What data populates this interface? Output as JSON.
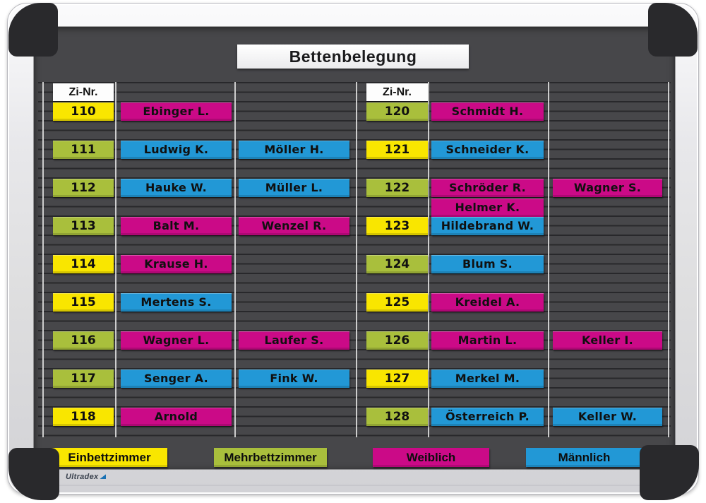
{
  "board_title": "Bettenbelegung",
  "column_header": "Zi-Nr.",
  "brand_logo": "Ultradex",
  "colors": {
    "single": "#f9e600",
    "multi": "#a9bf3c",
    "female": "#cb0a87",
    "male": "#2298d6",
    "board": "#47474a"
  },
  "legend": [
    {
      "label": "Einbettzimmer",
      "type": "single"
    },
    {
      "label": "Mehrbettzimmer",
      "type": "multi"
    },
    {
      "label": "Weiblich",
      "type": "female"
    },
    {
      "label": "Männlich",
      "type": "male"
    }
  ],
  "left_rows": [
    {
      "room": "110",
      "room_type": "single",
      "occupants": [
        {
          "name": "Ebinger L.",
          "gender": "female",
          "column": 1
        }
      ]
    },
    {
      "room": "111",
      "room_type": "multi",
      "occupants": [
        {
          "name": "Ludwig K.",
          "gender": "male",
          "column": 1
        },
        {
          "name": "Möller H.",
          "gender": "male",
          "column": 2
        }
      ]
    },
    {
      "room": "112",
      "room_type": "multi",
      "occupants": [
        {
          "name": "Hauke W.",
          "gender": "male",
          "column": 1
        },
        {
          "name": "Müller L.",
          "gender": "male",
          "column": 2
        }
      ]
    },
    {
      "room": "113",
      "room_type": "multi",
      "occupants": [
        {
          "name": "Balt M.",
          "gender": "female",
          "column": 1
        },
        {
          "name": "Wenzel R.",
          "gender": "female",
          "column": 2
        }
      ]
    },
    {
      "room": "114",
      "room_type": "single",
      "occupants": [
        {
          "name": "Krause H.",
          "gender": "female",
          "column": 1
        }
      ]
    },
    {
      "room": "115",
      "room_type": "single",
      "occupants": [
        {
          "name": "Mertens S.",
          "gender": "male",
          "column": 1
        }
      ]
    },
    {
      "room": "116",
      "room_type": "multi",
      "occupants": [
        {
          "name": "Wagner L.",
          "gender": "female",
          "column": 1
        },
        {
          "name": "Laufer S.",
          "gender": "female",
          "column": 2
        }
      ]
    },
    {
      "room": "117",
      "room_type": "multi",
      "occupants": [
        {
          "name": "Senger A.",
          "gender": "male",
          "column": 1
        },
        {
          "name": "Fink W.",
          "gender": "male",
          "column": 2
        }
      ]
    },
    {
      "room": "118",
      "room_type": "single",
      "occupants": [
        {
          "name": "Arnold",
          "gender": "female",
          "column": 1
        }
      ]
    }
  ],
  "right_rows": [
    {
      "room": "120",
      "room_type": "multi",
      "occupants": [
        {
          "name": "Schmidt H.",
          "gender": "female",
          "column": 1
        }
      ]
    },
    {
      "room": "121",
      "room_type": "single",
      "occupants": [
        {
          "name": "Schneider K.",
          "gender": "male",
          "column": 1
        }
      ]
    },
    {
      "room": "122",
      "room_type": "multi",
      "occupants": [
        {
          "name": "Schröder R.",
          "gender": "female",
          "column": 1
        },
        {
          "name": "Wagner S.",
          "gender": "female",
          "column": 2
        }
      ]
    },
    {
      "room": "123",
      "room_type": "single",
      "occupants": [
        {
          "name": "Helmer K.",
          "gender": "female",
          "column": 1,
          "stacked_above": true
        },
        {
          "name": "Hildebrand W.",
          "gender": "male",
          "column": 1
        }
      ]
    },
    {
      "room": "124",
      "room_type": "multi",
      "occupants": [
        {
          "name": "Blum S.",
          "gender": "male",
          "column": 1
        }
      ]
    },
    {
      "room": "125",
      "room_type": "single",
      "occupants": [
        {
          "name": "Kreidel A.",
          "gender": "female",
          "column": 1
        }
      ]
    },
    {
      "room": "126",
      "room_type": "multi",
      "occupants": [
        {
          "name": "Martin L.",
          "gender": "female",
          "column": 1
        },
        {
          "name": "Keller I.",
          "gender": "female",
          "column": 2
        }
      ]
    },
    {
      "room": "127",
      "room_type": "single",
      "occupants": [
        {
          "name": "Merkel M.",
          "gender": "male",
          "column": 1
        }
      ]
    },
    {
      "room": "128",
      "room_type": "multi",
      "occupants": [
        {
          "name": "Österreich P.",
          "gender": "male",
          "column": 1
        },
        {
          "name": "Keller W.",
          "gender": "male",
          "column": 2
        }
      ]
    }
  ]
}
